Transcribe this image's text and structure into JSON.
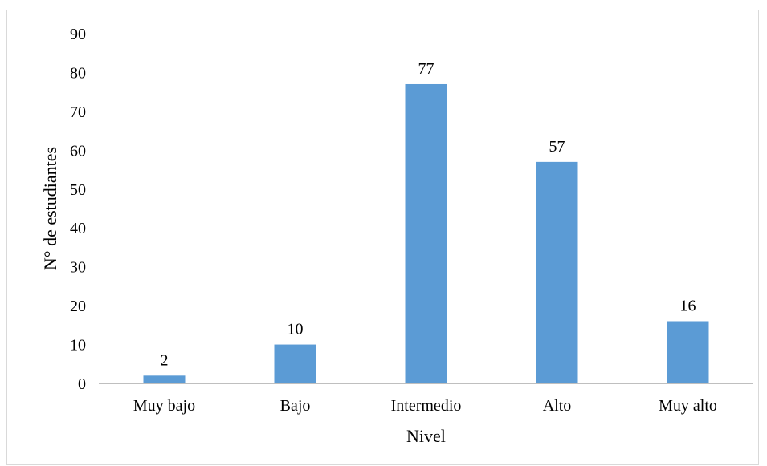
{
  "chart_data": {
    "type": "bar",
    "categories": [
      "Muy bajo",
      "Bajo",
      "Intermedio",
      "Alto",
      "Muy alto"
    ],
    "values": [
      2,
      10,
      77,
      57,
      16
    ],
    "data_labels": [
      "2",
      "10",
      "77",
      "57",
      "16"
    ],
    "title": "",
    "xlabel": "Nivel",
    "ylabel": "N° de estudiantes",
    "ylim": [
      0,
      90
    ],
    "yticks": [
      "0",
      "10",
      "20",
      "30",
      "40",
      "50",
      "60",
      "70",
      "80",
      "90"
    ],
    "grid": false,
    "legend": "none",
    "bar_color": "#5b9bd5",
    "axis_color": "#bfbfbf"
  }
}
